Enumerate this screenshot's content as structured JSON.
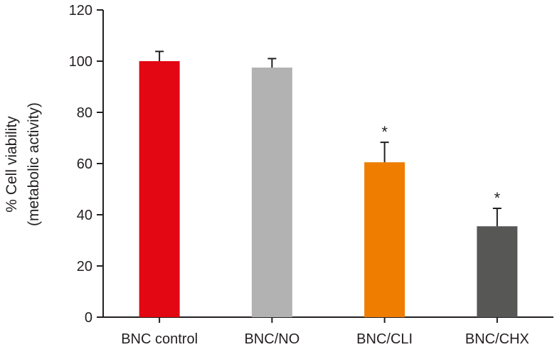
{
  "chart_data": {
    "type": "bar",
    "title": "",
    "xlabel": "",
    "ylabel_lines": [
      "% Cell viability",
      "(metabolic activity)"
    ],
    "ylim": [
      0,
      120
    ],
    "yticks": [
      0,
      20,
      40,
      60,
      80,
      100,
      120
    ],
    "categories": [
      "BNC control",
      "BNC/NO",
      "BNC/CLI",
      "BNC/CHX"
    ],
    "values": [
      100,
      97.5,
      60.5,
      35.5
    ],
    "errors": [
      3.8,
      3.5,
      7.8,
      7.0
    ],
    "significance": [
      "",
      "",
      "*",
      "*"
    ],
    "colors": [
      "#e30613",
      "#b2b2b2",
      "#ef7d00",
      "#575756"
    ],
    "grid": false,
    "legend": "none"
  }
}
